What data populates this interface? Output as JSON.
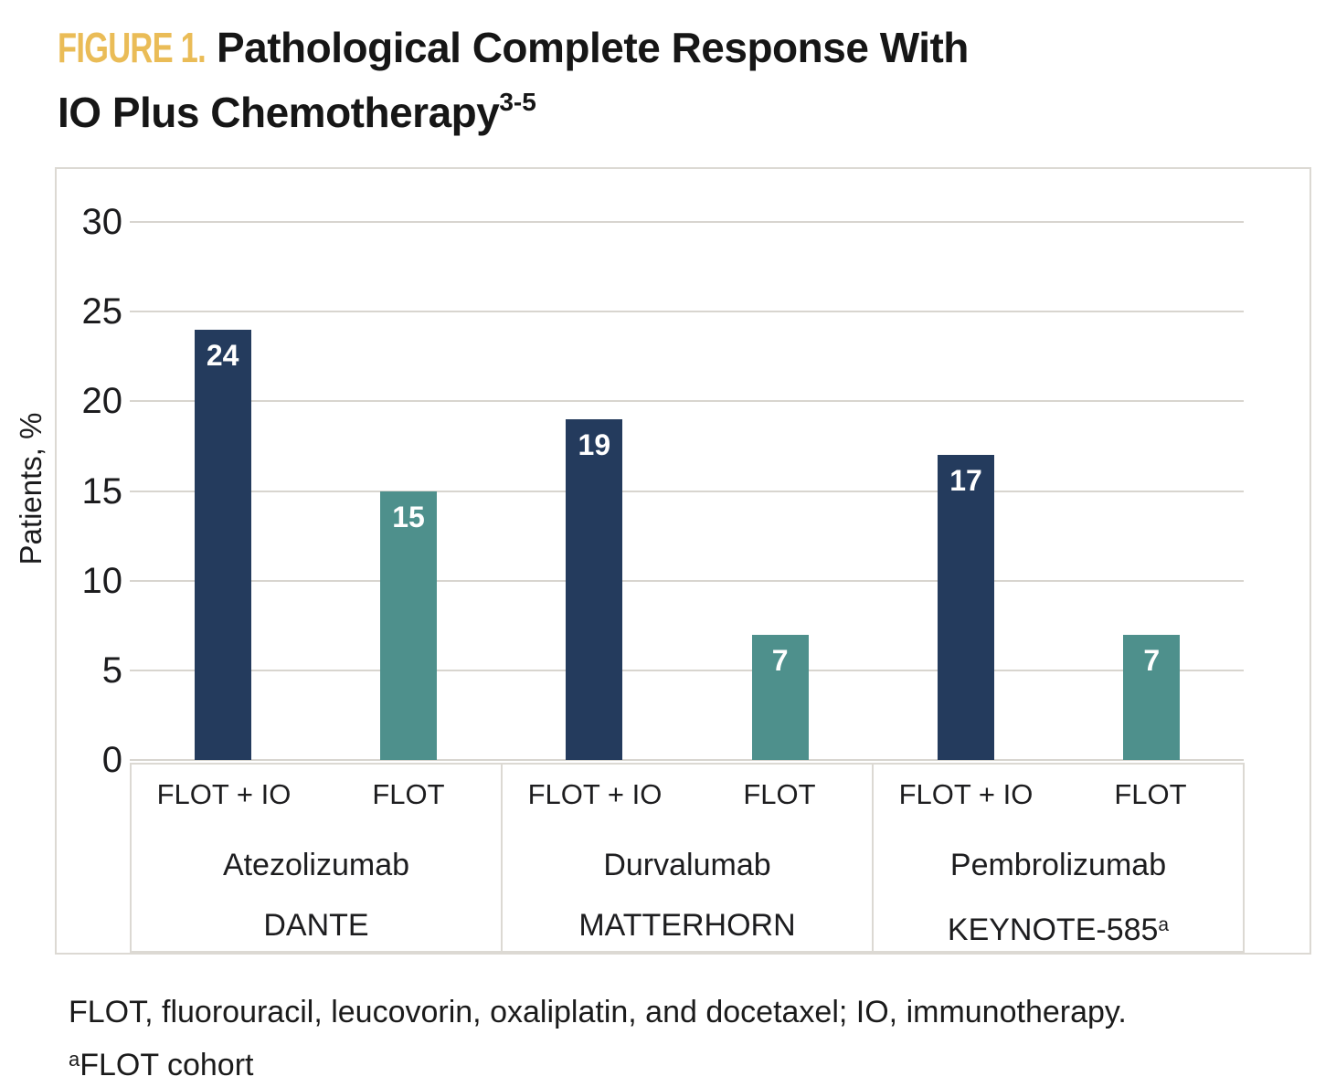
{
  "title": {
    "tag": "FIGURE 1.",
    "line1": "Pathological Complete Response With",
    "line2": "IO Plus Chemotherapy",
    "superscript": "3-5"
  },
  "footnotes": {
    "abbreviations": "FLOT, fluorouracil, leucovorin, oxaliplatin, and docetaxel; IO, immunotherapy.",
    "cohort_sup": "a",
    "cohort_text": "FLOT cohort"
  },
  "chart_data": {
    "type": "bar",
    "title": "Pathological Complete Response With IO Plus Chemotherapy",
    "ylabel": "Patients, %",
    "ylim": [
      0,
      30
    ],
    "yticks": [
      0,
      5,
      10,
      15,
      20,
      25,
      30
    ],
    "grid": true,
    "legend": "none",
    "value_labels": "inside-top-white",
    "arms": [
      "FLOT + IO",
      "FLOT"
    ],
    "series_colors": {
      "FLOT + IO": "#243b5d",
      "FLOT": "#4e908c"
    },
    "groups": [
      {
        "drug": "Atezolizumab",
        "trial": "DANTE",
        "trial_sup": "",
        "bars": [
          {
            "arm": "FLOT + IO",
            "value": 24
          },
          {
            "arm": "FLOT",
            "value": 15
          }
        ]
      },
      {
        "drug": "Durvalumab",
        "trial": "MATTERHORN",
        "trial_sup": "",
        "bars": [
          {
            "arm": "FLOT + IO",
            "value": 19
          },
          {
            "arm": "FLOT",
            "value": 7
          }
        ]
      },
      {
        "drug": "Pembrolizumab",
        "trial": "KEYNOTE-585",
        "trial_sup": "a",
        "bars": [
          {
            "arm": "FLOT + IO",
            "value": 17
          },
          {
            "arm": "FLOT",
            "value": 7
          }
        ]
      }
    ]
  },
  "colors": {
    "accent_gold": "#eabc57",
    "bar_navy": "#243b5d",
    "bar_teal": "#4e908c",
    "gridline": "#d8d5cf",
    "box_border": "#dcd9d3",
    "text": "#1c1c1e"
  }
}
